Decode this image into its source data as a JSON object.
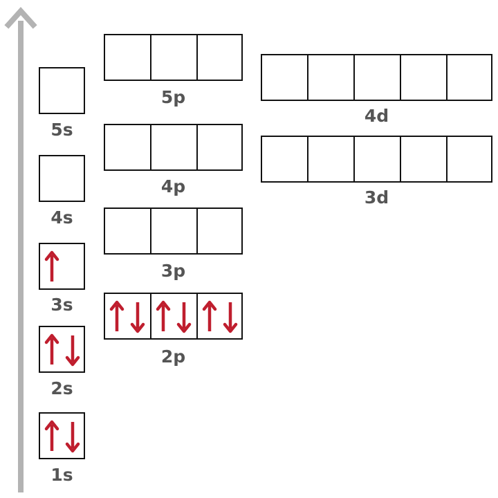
{
  "colors": {
    "arrow": "#bf1e2e",
    "axis": "#b3b3b3",
    "box": "#111111",
    "label": "#555555"
  },
  "axis": {
    "icon": "energy-arrow-up"
  },
  "orbitals": [
    {
      "id": "1s",
      "label": "1s",
      "electrons": [
        [
          "up",
          "down"
        ]
      ]
    },
    {
      "id": "2s",
      "label": "2s",
      "electrons": [
        [
          "up",
          "down"
        ]
      ]
    },
    {
      "id": "3s",
      "label": "3s",
      "electrons": [
        [
          "up"
        ]
      ]
    },
    {
      "id": "4s",
      "label": "4s",
      "electrons": [
        []
      ]
    },
    {
      "id": "5s",
      "label": "5s",
      "electrons": [
        []
      ]
    },
    {
      "id": "2p",
      "label": "2p",
      "electrons": [
        [
          "up",
          "down"
        ],
        [
          "up",
          "down"
        ],
        [
          "up",
          "down"
        ]
      ]
    },
    {
      "id": "3p",
      "label": "3p",
      "electrons": [
        [],
        [],
        []
      ]
    },
    {
      "id": "4p",
      "label": "4p",
      "electrons": [
        [],
        [],
        []
      ]
    },
    {
      "id": "5p",
      "label": "5p",
      "electrons": [
        [],
        [],
        []
      ]
    },
    {
      "id": "3d",
      "label": "3d",
      "electrons": [
        [],
        [],
        [],
        [],
        []
      ]
    },
    {
      "id": "4d",
      "label": "4d",
      "electrons": [
        [],
        [],
        [],
        [],
        []
      ]
    }
  ]
}
